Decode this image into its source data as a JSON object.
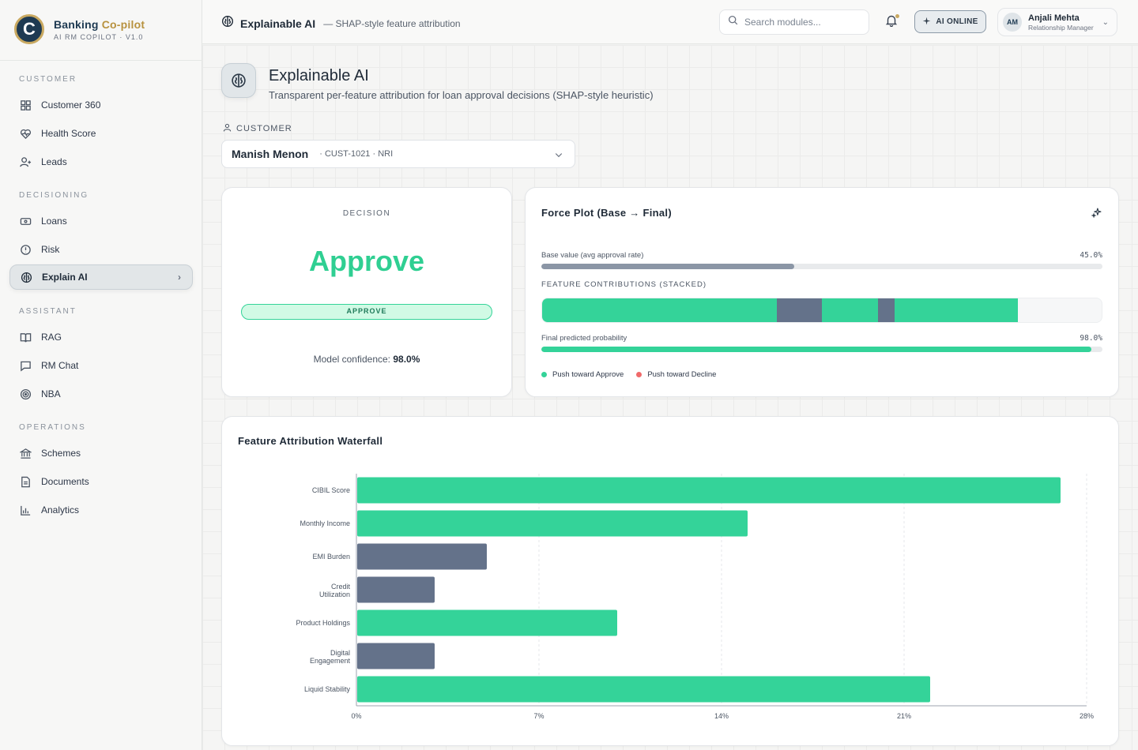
{
  "brand": {
    "name_main": "Banking",
    "name_accent": "Co-pilot",
    "subtitle": "AI RM COPILOT · V1.0",
    "logo_letter": "C"
  },
  "sidebar": {
    "sections": [
      {
        "title": "CUSTOMER",
        "items": [
          {
            "label": "Customer 360",
            "icon": "grid-icon"
          },
          {
            "label": "Health Score",
            "icon": "heart-pulse-icon"
          },
          {
            "label": "Leads",
            "icon": "user-plus-icon"
          }
        ]
      },
      {
        "title": "DECISIONING",
        "items": [
          {
            "label": "Loans",
            "icon": "card-icon"
          },
          {
            "label": "Risk",
            "icon": "shield-icon"
          },
          {
            "label": "Explain AI",
            "icon": "brain-icon",
            "active": true
          }
        ]
      },
      {
        "title": "ASSISTANT",
        "items": [
          {
            "label": "RAG",
            "icon": "book-icon"
          },
          {
            "label": "RM Chat",
            "icon": "chat-icon"
          },
          {
            "label": "NBA",
            "icon": "target-icon"
          }
        ]
      },
      {
        "title": "OPERATIONS",
        "items": [
          {
            "label": "Schemes",
            "icon": "bank-icon"
          },
          {
            "label": "Documents",
            "icon": "document-icon"
          },
          {
            "label": "Analytics",
            "icon": "bar-chart-icon"
          }
        ]
      }
    ]
  },
  "topbar": {
    "title": "Explainable AI",
    "subtitle": "— SHAP-style feature attribution",
    "search_placeholder": "Search modules...",
    "ai_status": "AI ONLINE",
    "user": {
      "initials": "AM",
      "name": "Anjali Mehta",
      "role": "Relationship Manager"
    }
  },
  "page": {
    "title": "Explainable AI",
    "subtitle": "Transparent per-feature attribution for loan approval decisions (SHAP-style heuristic)",
    "customer_label": "CUSTOMER",
    "customer": {
      "name": "Manish Menon",
      "meta": "· CUST-1021 · NRI"
    }
  },
  "decision": {
    "label": "DECISION",
    "value": "Approve",
    "badge": "APPROVE",
    "confidence_label": "Model confidence:",
    "confidence_value": "98.0%"
  },
  "force_plot": {
    "title": "Force Plot (Base → Final)",
    "base_label": "Base value (avg approval rate)",
    "base_value": "45.0%",
    "base_fraction": 0.45,
    "stack_label": "FEATURE CONTRIBUTIONS (STACKED)",
    "segments": [
      {
        "direction": "approve",
        "fraction": 0.42
      },
      {
        "direction": "decline",
        "fraction": 0.08
      },
      {
        "direction": "approve",
        "fraction": 0.1
      },
      {
        "direction": "decline",
        "fraction": 0.03
      },
      {
        "direction": "approve",
        "fraction": 0.22
      }
    ],
    "final_label": "Final predicted probability",
    "final_value": "98.0%",
    "final_fraction": 0.98,
    "legend": {
      "approve": "Push toward Approve",
      "decline": "Push toward Decline"
    },
    "colors": {
      "approve": "#34d399",
      "decline": "#f06a6a",
      "base": "#8b96a6",
      "neutral_seg": "#64728a"
    }
  },
  "waterfall": {
    "title": "Feature Attribution Waterfall"
  },
  "chart_data": {
    "type": "bar",
    "orientation": "horizontal",
    "title": "Feature Attribution Waterfall",
    "categories": [
      "CIBIL Score",
      "Monthly Income",
      "EMI Burden",
      "Credit Utilization",
      "Product Holdings",
      "Digital Engagement",
      "Liquid Stability"
    ],
    "values": [
      27.0,
      15.0,
      5.0,
      3.0,
      10.0,
      3.0,
      22.0
    ],
    "directions": [
      "approve",
      "approve",
      "decline",
      "decline",
      "approve",
      "decline",
      "approve"
    ],
    "xlim": [
      0,
      28
    ],
    "xticks": [
      "0%",
      "7%",
      "14%",
      "21%",
      "28%"
    ],
    "grid": true,
    "colors": {
      "approve": "#34d399",
      "decline": "#64728a"
    }
  }
}
